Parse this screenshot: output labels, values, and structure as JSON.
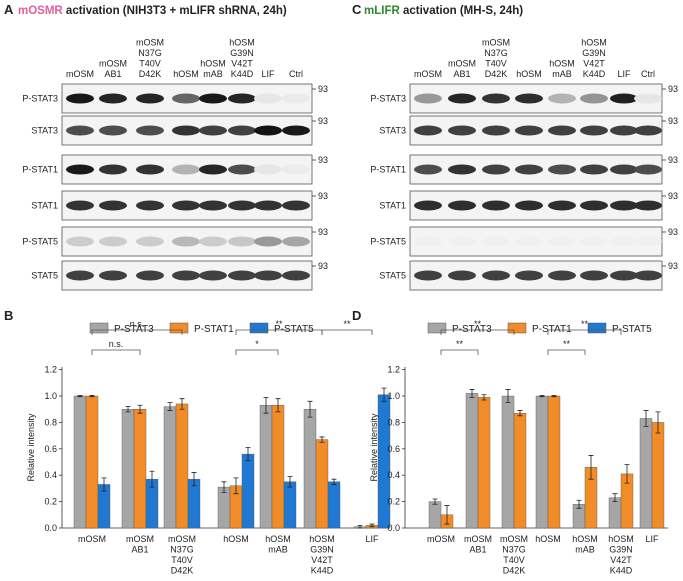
{
  "panel_letters": [
    "A",
    "B",
    "C",
    "D"
  ],
  "blots": [
    {
      "title_highlight": "mOSMR",
      "title_rest": " activation (NIH3T3 + mLIFR shRNA, 24h)",
      "highlight_color": "#e0609a",
      "lanes": [
        "mOSM",
        "mOSM\nAB1",
        "mOSM\nN37G\nT40V\nD42K",
        "hOSM",
        "hOSM\nmAB",
        "hOSM\nG39N\nV42T\nK44D",
        "LIF",
        "Ctrl"
      ],
      "rows": [
        "P-STAT3",
        "STAT3",
        "P-STAT1",
        "STAT1",
        "P-STAT5",
        "STAT5"
      ],
      "marker": "93"
    },
    {
      "title_highlight": "mLIFR",
      "title_rest": " activation (MH-S, 24h)",
      "highlight_color": "#2e8b2e",
      "lanes": [
        "mOSM",
        "mOSM\nAB1",
        "mOSM\nN37G\nT40V\nD42K",
        "hOSM",
        "hOSM\nmAB",
        "hOSM\nG39N\nV42T\nK44D",
        "LIF",
        "Ctrl"
      ],
      "rows": [
        "P-STAT3",
        "STAT3",
        "P-STAT1",
        "STAT1",
        "P-STAT5",
        "STAT5"
      ],
      "marker": "93"
    }
  ],
  "chart_data": [
    {
      "type": "bar",
      "y_label": "Relative intensity",
      "categories": [
        "mOSM",
        "mOSM\nAB1",
        "mOSM\nN37G\nT40V\nD42K",
        "hOSM",
        "hOSM\nmAB",
        "hOSM\nG39N\nV42T\nK44D",
        "LIF"
      ],
      "series": [
        {
          "name": "P-STAT3",
          "color": "#a6a6a6",
          "values": [
            1.0,
            0.9,
            0.92,
            0.31,
            0.93,
            0.9,
            0.01
          ],
          "errors": [
            0.005,
            0.02,
            0.03,
            0.04,
            0.06,
            0.06,
            0.01
          ]
        },
        {
          "name": "P-STAT1",
          "color": "#f28c28",
          "values": [
            1.0,
            0.9,
            0.94,
            0.32,
            0.93,
            0.67,
            0.02
          ],
          "errors": [
            0.005,
            0.03,
            0.04,
            0.06,
            0.05,
            0.02,
            0.01
          ]
        },
        {
          "name": "P-STAT5",
          "color": "#1f78d1",
          "values": [
            0.33,
            0.37,
            0.37,
            0.56,
            0.35,
            0.35,
            1.01
          ],
          "errors": [
            0.05,
            0.06,
            0.05,
            0.05,
            0.04,
            0.02,
            0.05
          ]
        }
      ],
      "ylim": [
        0,
        1.22
      ],
      "yticks": [
        {
          "value": 0,
          "label": "0.0"
        },
        {
          "value": 0.2,
          "label": "0.2"
        },
        {
          "value": 0.4,
          "label": "0.4"
        },
        {
          "value": 0.6,
          "label": "0.6"
        },
        {
          "value": 0.8,
          "label": "0.8"
        },
        {
          "value": 1.0,
          "label": "1.0"
        },
        {
          "value": 1.2,
          "label": "1.2"
        }
      ],
      "annotations": [
        "n.s.",
        "n.s.",
        "*",
        "**",
        "**"
      ]
    },
    {
      "type": "bar",
      "y_label": "Relative intensity",
      "categories": [
        "mOSM",
        "mOSM\nAB1",
        "mOSM\nN37G\nT40V\nD42K",
        "hOSM",
        "hOSM\nmAB",
        "hOSM\nG39N\nV42T\nK44D",
        "LIF"
      ],
      "series": [
        {
          "name": "P-STAT3",
          "color": "#a6a6a6",
          "values": [
            0.2,
            1.02,
            1.0,
            1.0,
            0.18,
            0.23,
            0.83
          ],
          "errors": [
            0.02,
            0.03,
            0.05,
            0.005,
            0.03,
            0.03,
            0.06
          ]
        },
        {
          "name": "P-STAT1",
          "color": "#f28c28",
          "values": [
            0.1,
            0.99,
            0.87,
            1.0,
            0.46,
            0.41,
            0.8
          ],
          "errors": [
            0.07,
            0.02,
            0.02,
            0.005,
            0.09,
            0.07,
            0.08
          ]
        },
        {
          "name": "P-STAT5",
          "color": "#1f78d1",
          "values": [
            null,
            null,
            null,
            null,
            null,
            null,
            null
          ],
          "errors": [
            null,
            null,
            null,
            null,
            null,
            null,
            null
          ]
        }
      ],
      "ylim": [
        0,
        1.22
      ],
      "yticks": [
        {
          "value": 0,
          "label": "0.0"
        },
        {
          "value": 0.2,
          "label": "0.2"
        },
        {
          "value": 0.4,
          "label": "0.4"
        },
        {
          "value": 0.6,
          "label": "0.6"
        },
        {
          "value": 0.8,
          "label": "0.8"
        },
        {
          "value": 1.0,
          "label": "1.0"
        },
        {
          "value": 1.2,
          "label": "1.2"
        }
      ],
      "annotations": [
        "**",
        "**",
        "**",
        "**"
      ]
    }
  ]
}
